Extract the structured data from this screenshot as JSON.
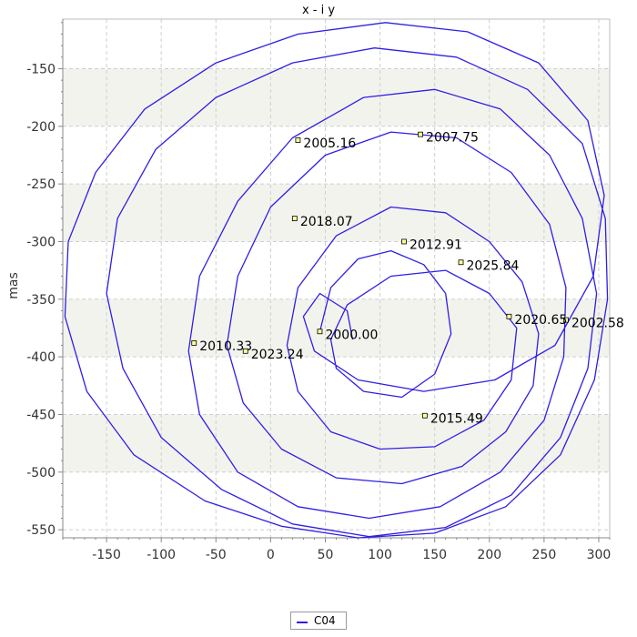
{
  "chart_data": {
    "type": "line",
    "title": "x - i y",
    "xlabel": "",
    "ylabel": "mas",
    "xlim": [
      -190,
      310
    ],
    "ylim": [
      -557,
      -107
    ],
    "grid": true,
    "legend_placement": "bottom-center",
    "x_ticks": [
      -150,
      -100,
      -50,
      0,
      50,
      100,
      150,
      200,
      250,
      300
    ],
    "y_ticks": [
      -550,
      -500,
      -450,
      -400,
      -350,
      -300,
      -250,
      -200,
      -150
    ],
    "x_tick_labels": [
      "-150",
      "-100",
      "-50",
      "0",
      "50",
      "100",
      "150",
      "200",
      "250",
      "300"
    ],
    "y_tick_labels": [
      "-550",
      "-500",
      "-450",
      "-400",
      "-350",
      "-300",
      "-250",
      "-200",
      "-150"
    ],
    "series": [
      {
        "name": "C04",
        "color": "#2f1ee6",
        "points": [
          [
            45,
            -378
          ],
          [
            55,
            -340
          ],
          [
            80,
            -315
          ],
          [
            110,
            -308
          ],
          [
            140,
            -320
          ],
          [
            160,
            -345
          ],
          [
            165,
            -380
          ],
          [
            150,
            -415
          ],
          [
            120,
            -435
          ],
          [
            85,
            -430
          ],
          [
            60,
            -410
          ],
          [
            55,
            -385
          ],
          [
            70,
            -355
          ],
          [
            110,
            -330
          ],
          [
            160,
            -325
          ],
          [
            200,
            -345
          ],
          [
            225,
            -375
          ],
          [
            220,
            -420
          ],
          [
            195,
            -455
          ],
          [
            150,
            -478
          ],
          [
            100,
            -480
          ],
          [
            55,
            -465
          ],
          [
            25,
            -430
          ],
          [
            15,
            -390
          ],
          [
            25,
            -340
          ],
          [
            60,
            -295
          ],
          [
            110,
            -270
          ],
          [
            160,
            -275
          ],
          [
            200,
            -300
          ],
          [
            230,
            -335
          ],
          [
            245,
            -380
          ],
          [
            240,
            -425
          ],
          [
            215,
            -465
          ],
          [
            175,
            -495
          ],
          [
            120,
            -510
          ],
          [
            60,
            -505
          ],
          [
            10,
            -480
          ],
          [
            -25,
            -440
          ],
          [
            -40,
            -390
          ],
          [
            -30,
            -330
          ],
          [
            0,
            -270
          ],
          [
            50,
            -225
          ],
          [
            110,
            -205
          ],
          [
            170,
            -210
          ],
          [
            220,
            -240
          ],
          [
            255,
            -285
          ],
          [
            270,
            -340
          ],
          [
            268,
            -400
          ],
          [
            250,
            -455
          ],
          [
            210,
            -500
          ],
          [
            155,
            -530
          ],
          [
            90,
            -540
          ],
          [
            25,
            -530
          ],
          [
            -30,
            -500
          ],
          [
            -65,
            -450
          ],
          [
            -75,
            -395
          ],
          [
            -65,
            -330
          ],
          [
            -30,
            -265
          ],
          [
            20,
            -210
          ],
          [
            85,
            -175
          ],
          [
            150,
            -168
          ],
          [
            210,
            -185
          ],
          [
            255,
            -225
          ],
          [
            285,
            -280
          ],
          [
            298,
            -345
          ],
          [
            290,
            -410
          ],
          [
            265,
            -470
          ],
          [
            220,
            -520
          ],
          [
            160,
            -548
          ],
          [
            90,
            -556
          ],
          [
            20,
            -545
          ],
          [
            -45,
            -515
          ],
          [
            -100,
            -470
          ],
          [
            -135,
            -410
          ],
          [
            -150,
            -345
          ],
          [
            -140,
            -280
          ],
          [
            -105,
            -220
          ],
          [
            -50,
            -175
          ],
          [
            20,
            -145
          ],
          [
            95,
            -132
          ],
          [
            170,
            -140
          ],
          [
            235,
            -168
          ],
          [
            285,
            -215
          ],
          [
            306,
            -280
          ],
          [
            308,
            -350
          ],
          [
            296,
            -420
          ],
          [
            265,
            -485
          ],
          [
            215,
            -530
          ],
          [
            150,
            -553
          ],
          [
            80,
            -557
          ],
          [
            10,
            -547
          ],
          [
            -60,
            -525
          ],
          [
            -125,
            -485
          ],
          [
            -168,
            -430
          ],
          [
            -188,
            -365
          ],
          [
            -185,
            -300
          ],
          [
            -160,
            -240
          ],
          [
            -115,
            -185
          ],
          [
            -50,
            -145
          ],
          [
            25,
            -120
          ],
          [
            105,
            -110
          ],
          [
            180,
            -118
          ],
          [
            245,
            -145
          ],
          [
            290,
            -195
          ],
          [
            305,
            -260
          ],
          [
            295,
            -330
          ],
          [
            260,
            -390
          ],
          [
            205,
            -420
          ],
          [
            140,
            -430
          ],
          [
            80,
            -420
          ],
          [
            40,
            -395
          ],
          [
            30,
            -365
          ],
          [
            45,
            -345
          ],
          [
            70,
            -360
          ],
          [
            75,
            -385
          ]
        ]
      }
    ],
    "annotations": [
      {
        "label": "2000.00",
        "x": 45,
        "y": -378
      },
      {
        "label": "2002.58",
        "x": 270,
        "y": -368
      },
      {
        "label": "2005.16",
        "x": 25,
        "y": -212
      },
      {
        "label": "2007.75",
        "x": 137,
        "y": -207
      },
      {
        "label": "2010.33",
        "x": -70,
        "y": -388
      },
      {
        "label": "2012.91",
        "x": 122,
        "y": -300
      },
      {
        "label": "2015.49",
        "x": 141,
        "y": -451
      },
      {
        "label": "2018.07",
        "x": 22,
        "y": -280
      },
      {
        "label": "2020.65",
        "x": 218,
        "y": -365
      },
      {
        "label": "2023.24",
        "x": -23,
        "y": -395
      },
      {
        "label": "2025.84",
        "x": 174,
        "y": -318
      }
    ]
  }
}
